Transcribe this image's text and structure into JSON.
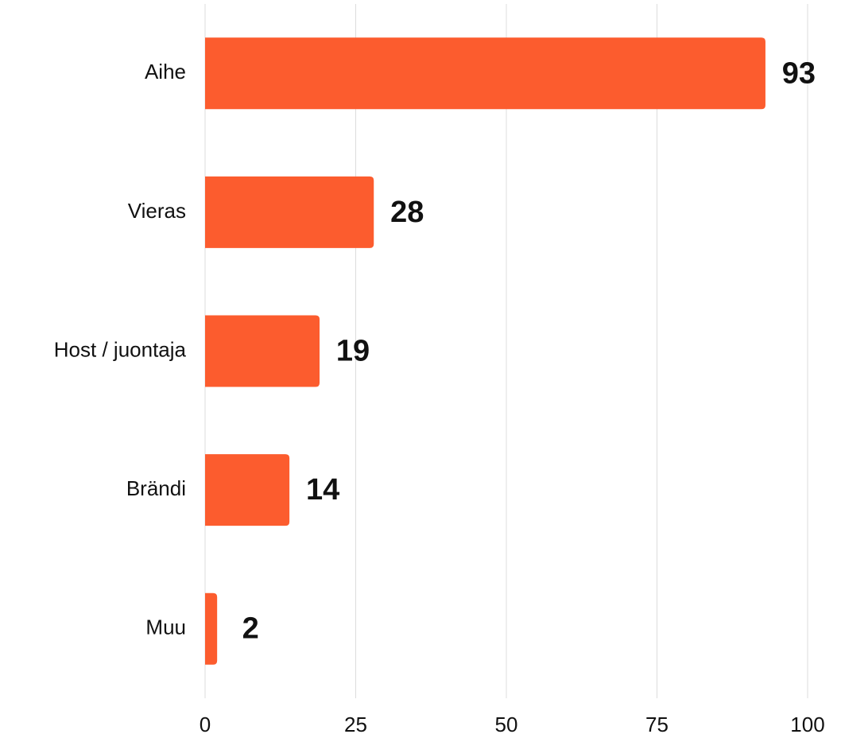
{
  "chart_data": {
    "type": "bar",
    "orientation": "horizontal",
    "categories": [
      "Aihe",
      "Vieras",
      "Host / juontaja",
      "Brändi",
      "Muu"
    ],
    "values": [
      93,
      28,
      19,
      14,
      2
    ],
    "color": "#fc5c2e",
    "xlim": [
      0,
      100
    ],
    "xticks": [
      0,
      25,
      50,
      75,
      100
    ],
    "grid": true
  }
}
